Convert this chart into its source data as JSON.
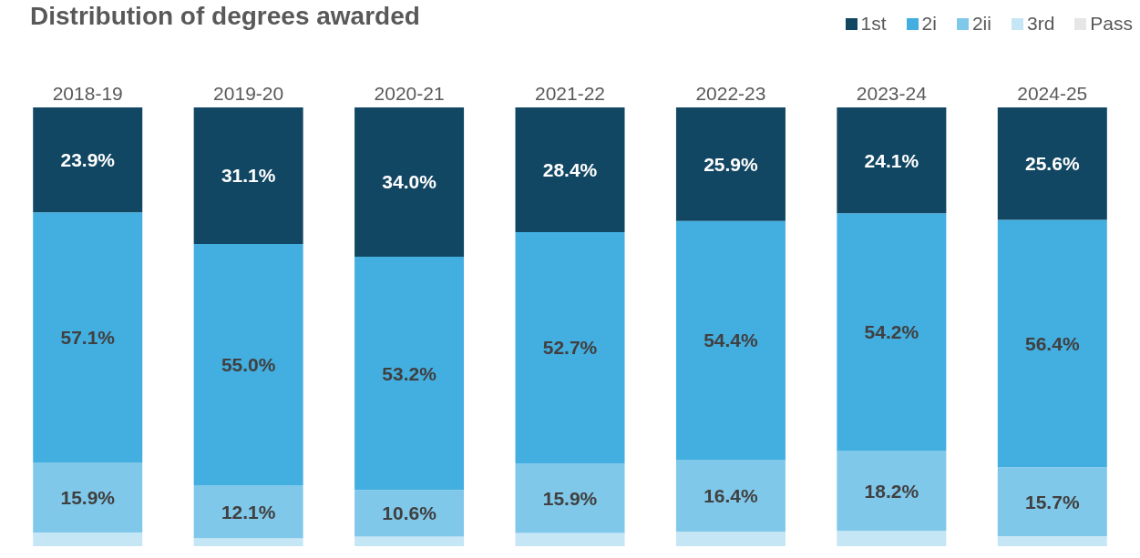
{
  "chart_data": {
    "type": "bar",
    "title": "Distribution of degrees awarded",
    "stacked": true,
    "categories": [
      "2018-19",
      "2019-20",
      "2020-21",
      "2021-22",
      "2022-23",
      "2023-24",
      "2024-25"
    ],
    "series": [
      {
        "name": "Pass",
        "color": "#e6e6e6",
        "values": [
          null,
          null,
          null,
          null,
          null,
          null,
          null
        ]
      },
      {
        "name": "3rd",
        "color": "#c5e6f5",
        "values": [
          3.1,
          1.8,
          2.2,
          3.0,
          3.3,
          3.5,
          2.3
        ]
      },
      {
        "name": "2ii",
        "color": "#80c8ea",
        "values": [
          15.9,
          12.1,
          10.6,
          15.9,
          16.4,
          18.2,
          15.7
        ],
        "value_labels": [
          "15.9%",
          "12.1%",
          "10.6%",
          "15.9%",
          "16.4%",
          "18.2%",
          "15.7%"
        ]
      },
      {
        "name": "2i",
        "color": "#43aee0",
        "values": [
          57.1,
          55.0,
          53.2,
          52.7,
          54.4,
          54.2,
          56.4
        ],
        "value_labels": [
          "57.1%",
          "55.0%",
          "53.2%",
          "52.7%",
          "54.4%",
          "54.2%",
          "56.4%"
        ]
      },
      {
        "name": "1st",
        "color": "#124763",
        "values": [
          23.9,
          31.1,
          34.0,
          28.4,
          25.9,
          24.1,
          25.6
        ],
        "value_labels": [
          "23.9%",
          "31.1%",
          "34.0%",
          "28.4%",
          "25.9%",
          "24.1%",
          "25.6%"
        ]
      }
    ],
    "ylim": [
      0,
      100
    ],
    "tick_labels": "x",
    "legend": "top right"
  }
}
